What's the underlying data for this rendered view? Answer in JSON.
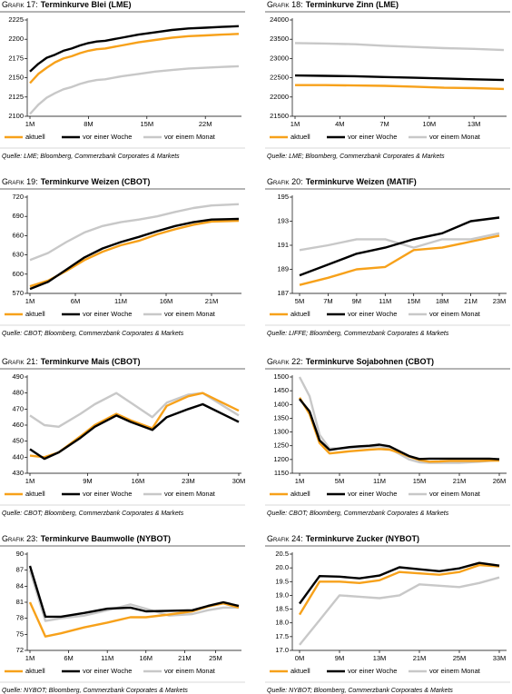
{
  "chart_data": [
    {
      "type": "line",
      "label": "Grafik 17:",
      "title": "Terminkurve Blei (LME)",
      "source": "Quelle: LME; Bloomberg, Commerzbank Corporates & Markets",
      "x": [
        1,
        2,
        3,
        4,
        5,
        6,
        7,
        8,
        9,
        10,
        12,
        14,
        16,
        18,
        20,
        22,
        24,
        26
      ],
      "xlim": [
        1,
        26
      ],
      "xticks": [
        {
          "value": 1,
          "label": "1M"
        },
        {
          "value": 8,
          "label": "8M"
        },
        {
          "value": 15,
          "label": "15M"
        },
        {
          "value": 22,
          "label": "22M"
        }
      ],
      "ylim": [
        2100,
        2225
      ],
      "yticks": [
        2100,
        2125,
        2150,
        2175,
        2200,
        2225
      ],
      "series": [
        {
          "name": "aktuell",
          "color": "#f7a11a",
          "values": [
            2143,
            2155,
            2163,
            2170,
            2175,
            2178,
            2182,
            2185,
            2187,
            2188,
            2192,
            2196,
            2199,
            2202,
            2204,
            2205,
            2206,
            2207
          ]
        },
        {
          "name": "vor einer Woche",
          "color": "#000000",
          "values": [
            2158,
            2168,
            2176,
            2180,
            2185,
            2188,
            2192,
            2195,
            2197,
            2198,
            2202,
            2206,
            2209,
            2212,
            2214,
            2215,
            2216,
            2217
          ]
        },
        {
          "name": "vor einem Monat",
          "color": "#c8c8c8",
          "values": [
            2103,
            2115,
            2124,
            2130,
            2135,
            2138,
            2142,
            2145,
            2147,
            2148,
            2152,
            2155,
            2158,
            2160,
            2162,
            2163,
            2164,
            2165
          ]
        }
      ]
    },
    {
      "type": "line",
      "label": "Grafik 18:",
      "title": "Terminkurve Zinn (LME)",
      "source": "Quelle: LME; Bloomberg, Commerzbank Corporates & Markets",
      "x": [
        1,
        3,
        5,
        7,
        9,
        11,
        13,
        15
      ],
      "xlim": [
        1,
        15
      ],
      "xticks": [
        {
          "value": 1,
          "label": "1M"
        },
        {
          "value": 4,
          "label": "4M"
        },
        {
          "value": 7,
          "label": "7M"
        },
        {
          "value": 10,
          "label": "10M"
        },
        {
          "value": 13,
          "label": "13M"
        }
      ],
      "ylim": [
        21500,
        24000
      ],
      "yticks": [
        21500,
        22000,
        22500,
        23000,
        23500,
        24000
      ],
      "series": [
        {
          "name": "aktuell",
          "color": "#f7a11a",
          "values": [
            22310,
            22310,
            22300,
            22290,
            22270,
            22240,
            22230,
            22210
          ]
        },
        {
          "name": "vor einer Woche",
          "color": "#000000",
          "values": [
            22560,
            22550,
            22540,
            22520,
            22500,
            22480,
            22460,
            22440
          ]
        },
        {
          "name": "vor einem Monat",
          "color": "#c8c8c8",
          "values": [
            23400,
            23390,
            23370,
            23330,
            23300,
            23270,
            23250,
            23220
          ]
        }
      ]
    },
    {
      "type": "line",
      "label": "Grafik 19:",
      "title": "Terminkurve Weizen (CBOT)",
      "source": "Quelle: CBOT; Bloomberg, Commerzbank Corporates & Markets",
      "x": [
        1,
        3,
        5,
        7,
        9,
        11,
        13,
        15,
        17,
        19,
        21,
        24
      ],
      "xlim": [
        1,
        24
      ],
      "xticks": [
        {
          "value": 1,
          "label": "1M"
        },
        {
          "value": 6,
          "label": "6M"
        },
        {
          "value": 11,
          "label": "11M"
        },
        {
          "value": 16,
          "label": "16M"
        },
        {
          "value": 21,
          "label": "21M"
        }
      ],
      "ylim": [
        570,
        720
      ],
      "yticks": [
        570,
        600,
        630,
        660,
        690,
        720
      ],
      "series": [
        {
          "name": "aktuell",
          "color": "#f7a11a",
          "values": [
            581,
            590,
            605,
            622,
            635,
            645,
            652,
            662,
            670,
            677,
            682,
            683
          ]
        },
        {
          "name": "vor einer Woche",
          "color": "#000000",
          "values": [
            577,
            588,
            607,
            626,
            640,
            650,
            658,
            667,
            675,
            681,
            685,
            686
          ]
        },
        {
          "name": "vor einem Monat",
          "color": "#c8c8c8",
          "values": [
            622,
            633,
            650,
            665,
            675,
            681,
            685,
            690,
            697,
            703,
            707,
            709
          ]
        }
      ]
    },
    {
      "type": "line",
      "label": "Grafik 20:",
      "title": "Terminkurve Weizen (MATIF)",
      "source": "Quelle: LIFFE; Bloomberg, Commerzbank Corporates & Markets",
      "categories": [
        "5M",
        "7M",
        "9M",
        "11M",
        "15M",
        "18M",
        "21M",
        "23M"
      ],
      "ylim": [
        187,
        195
      ],
      "yticks": [
        187,
        189,
        191,
        193,
        195
      ],
      "series": [
        {
          "name": "aktuell",
          "color": "#f7a11a",
          "values": [
            187.7,
            188.3,
            189.0,
            189.2,
            190.6,
            190.8,
            191.3,
            191.8
          ]
        },
        {
          "name": "vor einer Woche",
          "color": "#000000",
          "values": [
            188.5,
            189.4,
            190.3,
            190.8,
            191.5,
            192.0,
            193.0,
            193.3
          ]
        },
        {
          "name": "vor einem Monat",
          "color": "#c8c8c8",
          "values": [
            190.6,
            191.0,
            191.5,
            191.5,
            190.8,
            191.5,
            191.5,
            192.0
          ]
        }
      ]
    },
    {
      "type": "line",
      "label": "Grafik 21:",
      "title": "Terminkurve Mais (CBOT)",
      "source": "Quelle: CBOT; Bloomberg, Commerzbank Corporates & Markets",
      "x": [
        1,
        3,
        5,
        8,
        10,
        13,
        15,
        18,
        20,
        23,
        25,
        30
      ],
      "xlim": [
        1,
        30
      ],
      "xticks": [
        {
          "value": 1,
          "label": "1M"
        },
        {
          "value": 9,
          "label": "9M"
        },
        {
          "value": 16,
          "label": "16M"
        },
        {
          "value": 23,
          "label": "23M"
        },
        {
          "value": 30,
          "label": "30M"
        }
      ],
      "ylim": [
        430,
        490
      ],
      "yticks": [
        430,
        440,
        450,
        460,
        470,
        480,
        490
      ],
      "series": [
        {
          "name": "aktuell",
          "color": "#f7a11a",
          "values": [
            441,
            440,
            443,
            453,
            460,
            467,
            463,
            458,
            472,
            478,
            480,
            469
          ]
        },
        {
          "name": "vor einer Woche",
          "color": "#000000",
          "values": [
            445,
            439,
            443,
            452,
            459,
            466,
            462,
            457,
            465,
            470,
            473,
            462
          ]
        },
        {
          "name": "vor einem Monat",
          "color": "#c8c8c8",
          "values": [
            466,
            460,
            459,
            467,
            473,
            480,
            474,
            465,
            474,
            479,
            480,
            466
          ]
        }
      ]
    },
    {
      "type": "line",
      "label": "Grafik 22:",
      "title": "Terminkurve Sojabohnen (CBOT)",
      "source": "Quelle: CBOT; Bloomberg, Commerzbank Corporates & Markets",
      "categories": [
        "1M",
        null,
        null,
        null,
        "5M",
        null,
        null,
        null,
        "11M",
        null,
        null,
        null,
        "15M",
        null,
        null,
        null,
        "21M",
        null,
        null,
        null,
        "26M"
      ],
      "ylim": [
        1150,
        1500
      ],
      "yticks": [
        1150,
        1200,
        1250,
        1300,
        1350,
        1400,
        1450,
        1500
      ],
      "series": [
        {
          "name": "aktuell",
          "color": "#f7a11a",
          "values": [
            1425,
            1365,
            1260,
            1222,
            1226,
            1230,
            1233,
            1236,
            1238,
            1236,
            1225,
            1210,
            1198,
            1192,
            1193,
            1195,
            1195,
            1195,
            1195,
            1196,
            1196
          ]
        },
        {
          "name": "vor einer Woche",
          "color": "#000000",
          "values": [
            1420,
            1375,
            1270,
            1235,
            1240,
            1245,
            1248,
            1250,
            1254,
            1248,
            1230,
            1212,
            1202,
            1203,
            1203,
            1203,
            1203,
            1203,
            1203,
            1203,
            1201
          ]
        },
        {
          "name": "vor einem Monat",
          "color": "#c8c8c8",
          "values": [
            1500,
            1430,
            1290,
            1240,
            1240,
            1242,
            1244,
            1246,
            1248,
            1240,
            1220,
            1200,
            1190,
            1188,
            1188,
            1188,
            1188,
            1190,
            1192,
            1195,
            1197
          ]
        }
      ]
    },
    {
      "type": "line",
      "label": "Grafik 23:",
      "title": "Terminkurve Baumwolle (NYBOT)",
      "source": "Quelle: NYBOT; Bloomberg, Commerzbank Corporates & Markets",
      "x": [
        1,
        3,
        5,
        8,
        11,
        14,
        16,
        19,
        22,
        24,
        26,
        28
      ],
      "xlim": [
        1,
        28
      ],
      "xticks": [
        {
          "value": 1,
          "label": "1M"
        },
        {
          "value": 6,
          "label": "6M"
        },
        {
          "value": 11,
          "label": "11M"
        },
        {
          "value": 16,
          "label": "16M"
        },
        {
          "value": 21,
          "label": "21M"
        },
        {
          "value": 25,
          "label": "25M"
        }
      ],
      "ylim": [
        72,
        90
      ],
      "yticks": [
        72,
        75,
        78,
        81,
        84,
        87,
        90
      ],
      "series": [
        {
          "name": "aktuell",
          "color": "#f7a11a",
          "values": [
            81,
            74.6,
            75.2,
            76.3,
            77.2,
            78.2,
            78.2,
            78.7,
            79.3,
            80.2,
            80.8,
            80.0
          ]
        },
        {
          "name": "vor einer Woche",
          "color": "#000000",
          "values": [
            87.8,
            78.3,
            78.3,
            79.0,
            79.8,
            80.0,
            79.3,
            79.4,
            79.5,
            80.3,
            81.0,
            80.3
          ]
        },
        {
          "name": "vor einem Monat",
          "color": "#c8c8c8",
          "values": [
            87,
            77.5,
            78,
            78.5,
            79.5,
            80.6,
            79.8,
            78.5,
            78.8,
            79.5,
            80,
            80
          ]
        }
      ]
    },
    {
      "type": "line",
      "label": "Grafik 24:",
      "title": "Terminkurve Zucker (NYBOT)",
      "source": "Quelle: NYBOT; Bloomberg, Commerzbank Corporates & Markets",
      "categories": [
        "0M",
        null,
        "9M",
        null,
        "13M",
        null,
        "21M",
        null,
        "25M",
        null,
        "33M"
      ],
      "ylim": [
        17,
        20.5
      ],
      "yticks": [
        {
          "value": 17,
          "label": "17.0"
        },
        17.5,
        {
          "value": 18,
          "label": "18.0"
        },
        18.5,
        {
          "value": 19,
          "label": "19.0"
        },
        19.5,
        {
          "value": 20,
          "label": "20.0"
        },
        20.5
      ],
      "series": [
        {
          "name": "aktuell",
          "color": "#f7a11a",
          "values": [
            18.3,
            19.5,
            19.5,
            19.45,
            19.55,
            19.85,
            19.8,
            19.75,
            19.85,
            20.1,
            20.05
          ]
        },
        {
          "name": "vor einer Woche",
          "color": "#000000",
          "values": [
            18.7,
            19.7,
            19.68,
            19.62,
            19.72,
            20.02,
            19.95,
            19.88,
            19.98,
            20.18,
            20.08
          ]
        },
        {
          "name": "vor einem Monat",
          "color": "#c8c8c8",
          "values": [
            17.2,
            18.1,
            19.0,
            18.95,
            18.9,
            19.0,
            19.4,
            19.35,
            19.3,
            19.45,
            19.65
          ]
        }
      ]
    }
  ]
}
